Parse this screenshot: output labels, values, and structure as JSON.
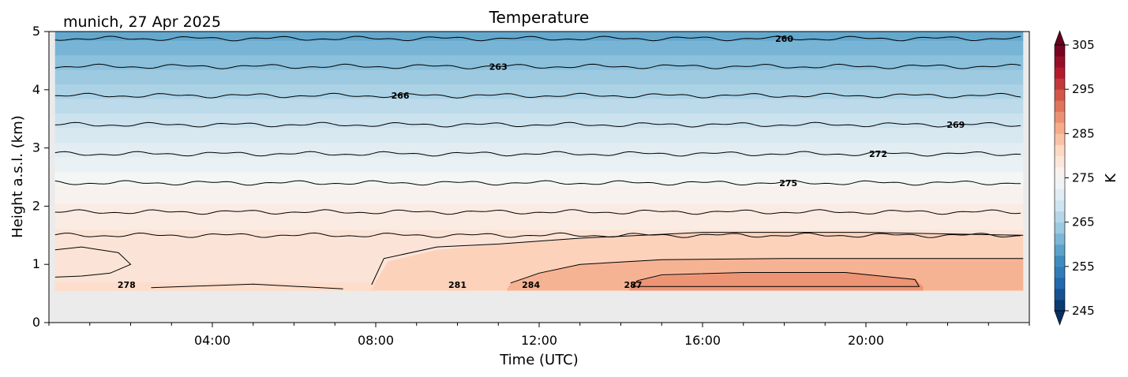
{
  "chart_data": {
    "type": "heatmap",
    "title": "Temperature",
    "subtitle": "munich, 27 Apr 2025",
    "xlabel": "Time (UTC)",
    "ylabel": "Height a.s.l. (km)",
    "xlim": [
      0,
      24
    ],
    "ylim": [
      0,
      5
    ],
    "x_tick_labels": [
      "04:00",
      "08:00",
      "12:00",
      "16:00",
      "20:00"
    ],
    "x_tick_hours": [
      4,
      8,
      12,
      16,
      20
    ],
    "y_ticks": [
      0,
      1,
      2,
      3,
      4,
      5
    ],
    "data_bottom_km": 0.55,
    "colorbar": {
      "label": "K",
      "min": 245,
      "max": 305,
      "ticks": [
        245,
        255,
        265,
        275,
        285,
        295,
        305
      ],
      "extend": "both",
      "colormap": "RdBu_r",
      "colors": [
        "#053061",
        "#2166ac",
        "#4393c3",
        "#92c5de",
        "#d1e5f0",
        "#f7f7f7",
        "#fddbc7",
        "#f4a582",
        "#d6604d",
        "#b2182b",
        "#67001f"
      ]
    },
    "grid": false,
    "contour_lines": [
      {
        "level": 260,
        "height_km": 4.88,
        "label_x_hours": 18.0
      },
      {
        "level": 263,
        "height_km": 4.4,
        "label_x_hours": 11.0
      },
      {
        "level": 266,
        "height_km": 3.9,
        "label_x_hours": 8.6
      },
      {
        "level": 269,
        "height_km": 3.4,
        "label_x_hours": 22.2
      },
      {
        "level": 272,
        "height_km": 2.9,
        "label_x_hours": 20.3
      },
      {
        "level": 275,
        "height_km": 2.4,
        "label_x_hours": 18.1
      },
      {
        "level": 278,
        "height_km": 0.65,
        "label_x_hours": 1.9
      },
      {
        "level": 281,
        "height_km": 0.65,
        "label_x_hours": 10.0
      },
      {
        "level": 284,
        "height_km": 0.65,
        "label_x_hours": 11.8
      },
      {
        "level": 287,
        "height_km": 0.65,
        "label_x_hours": 14.3
      }
    ],
    "unlabeled_contours_km": [
      1.9,
      1.5
    ]
  }
}
